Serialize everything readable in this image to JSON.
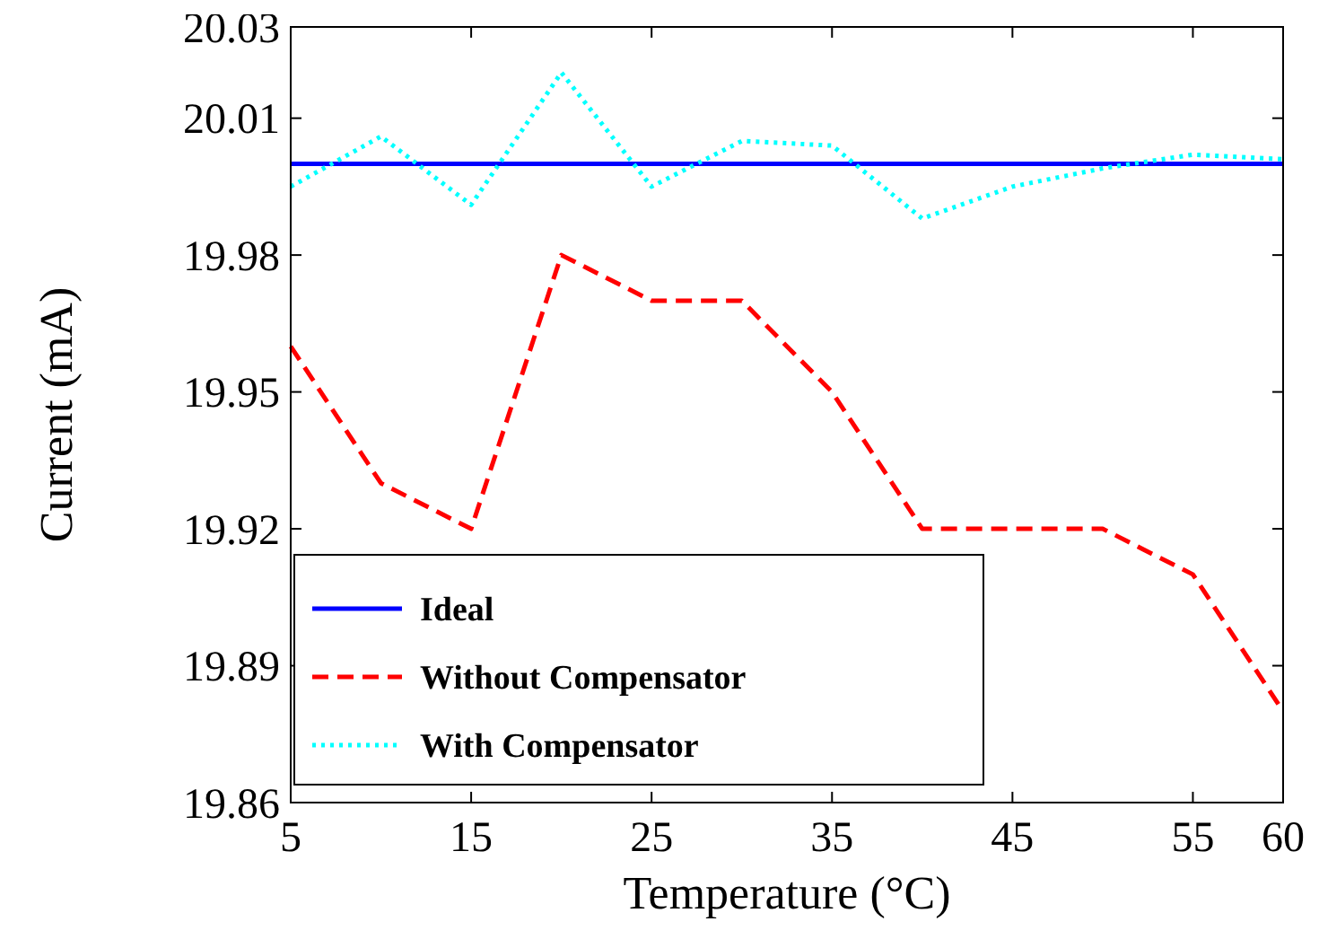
{
  "chart_data": {
    "type": "line",
    "xlabel": "Temperature (°C)",
    "ylabel": "Current (mA)",
    "x": [
      5,
      10,
      15,
      20,
      25,
      30,
      35,
      40,
      45,
      50,
      55,
      60
    ],
    "series": [
      {
        "name": "Ideal",
        "color": "#0000ff",
        "line_style": "solid",
        "values": [
          20.0,
          20.0,
          20.0,
          20.0,
          20.0,
          20.0,
          20.0,
          20.0,
          20.0,
          20.0,
          20.0,
          20.0
        ]
      },
      {
        "name": "Without Compensator",
        "color": "#ff0000",
        "line_style": "dashed",
        "values": [
          19.96,
          19.93,
          19.92,
          19.98,
          19.97,
          19.97,
          19.95,
          19.92,
          19.92,
          19.92,
          19.91,
          19.88
        ]
      },
      {
        "name": "With Compensator",
        "color": "#00ffff",
        "line_style": "dotted",
        "values": [
          19.995,
          20.006,
          19.991,
          20.02,
          19.995,
          20.005,
          20.004,
          19.988,
          19.995,
          19.999,
          20.002,
          20.001
        ]
      }
    ],
    "xlim": [
      5,
      60
    ],
    "xticks": [
      5,
      15,
      25,
      35,
      45,
      55,
      60
    ],
    "ylim": [
      19.86,
      20.03
    ],
    "yticks": [
      19.86,
      19.89,
      19.92,
      19.95,
      19.98,
      20.01,
      20.03
    ],
    "grid": false,
    "legend": "bottom left",
    "marker": "none"
  }
}
